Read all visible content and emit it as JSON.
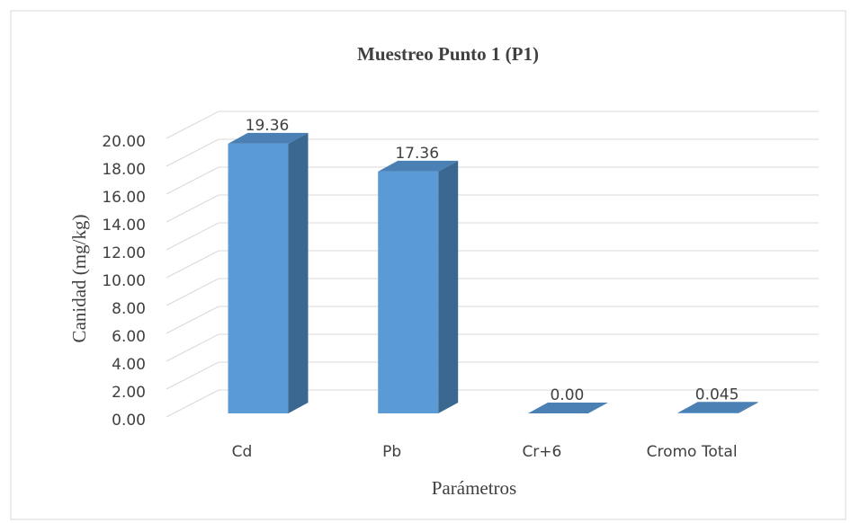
{
  "chart_data": {
    "type": "bar3d",
    "title": "Muestreo Punto 1 (P1)",
    "y_label": "Canidad  (mg/kg)",
    "x_label": "Parámetros",
    "categories": [
      "Cd",
      "Pb",
      "Cr+6",
      "Cromo Total"
    ],
    "values": [
      19.36,
      17.36,
      0,
      0.045
    ],
    "value_labels": [
      "19.36",
      "17.36",
      "0.00",
      "0.045"
    ],
    "color": "#5b9bd5",
    "ylim": [
      0,
      20
    ],
    "yticks": [
      {
        "value": 0,
        "label": "0.00"
      },
      {
        "value": 2,
        "label": "2.00"
      },
      {
        "value": 4,
        "label": "4.00"
      },
      {
        "value": 6,
        "label": "6.00"
      },
      {
        "value": 8,
        "label": "8.00"
      },
      {
        "value": 10,
        "label": "10.00"
      },
      {
        "value": 12,
        "label": "12.00"
      },
      {
        "value": 14,
        "label": "14.00"
      },
      {
        "value": 16,
        "label": "16.00"
      },
      {
        "value": 18,
        "label": "18.00"
      },
      {
        "value": 20,
        "label": "20.00"
      }
    ],
    "grid": true
  }
}
